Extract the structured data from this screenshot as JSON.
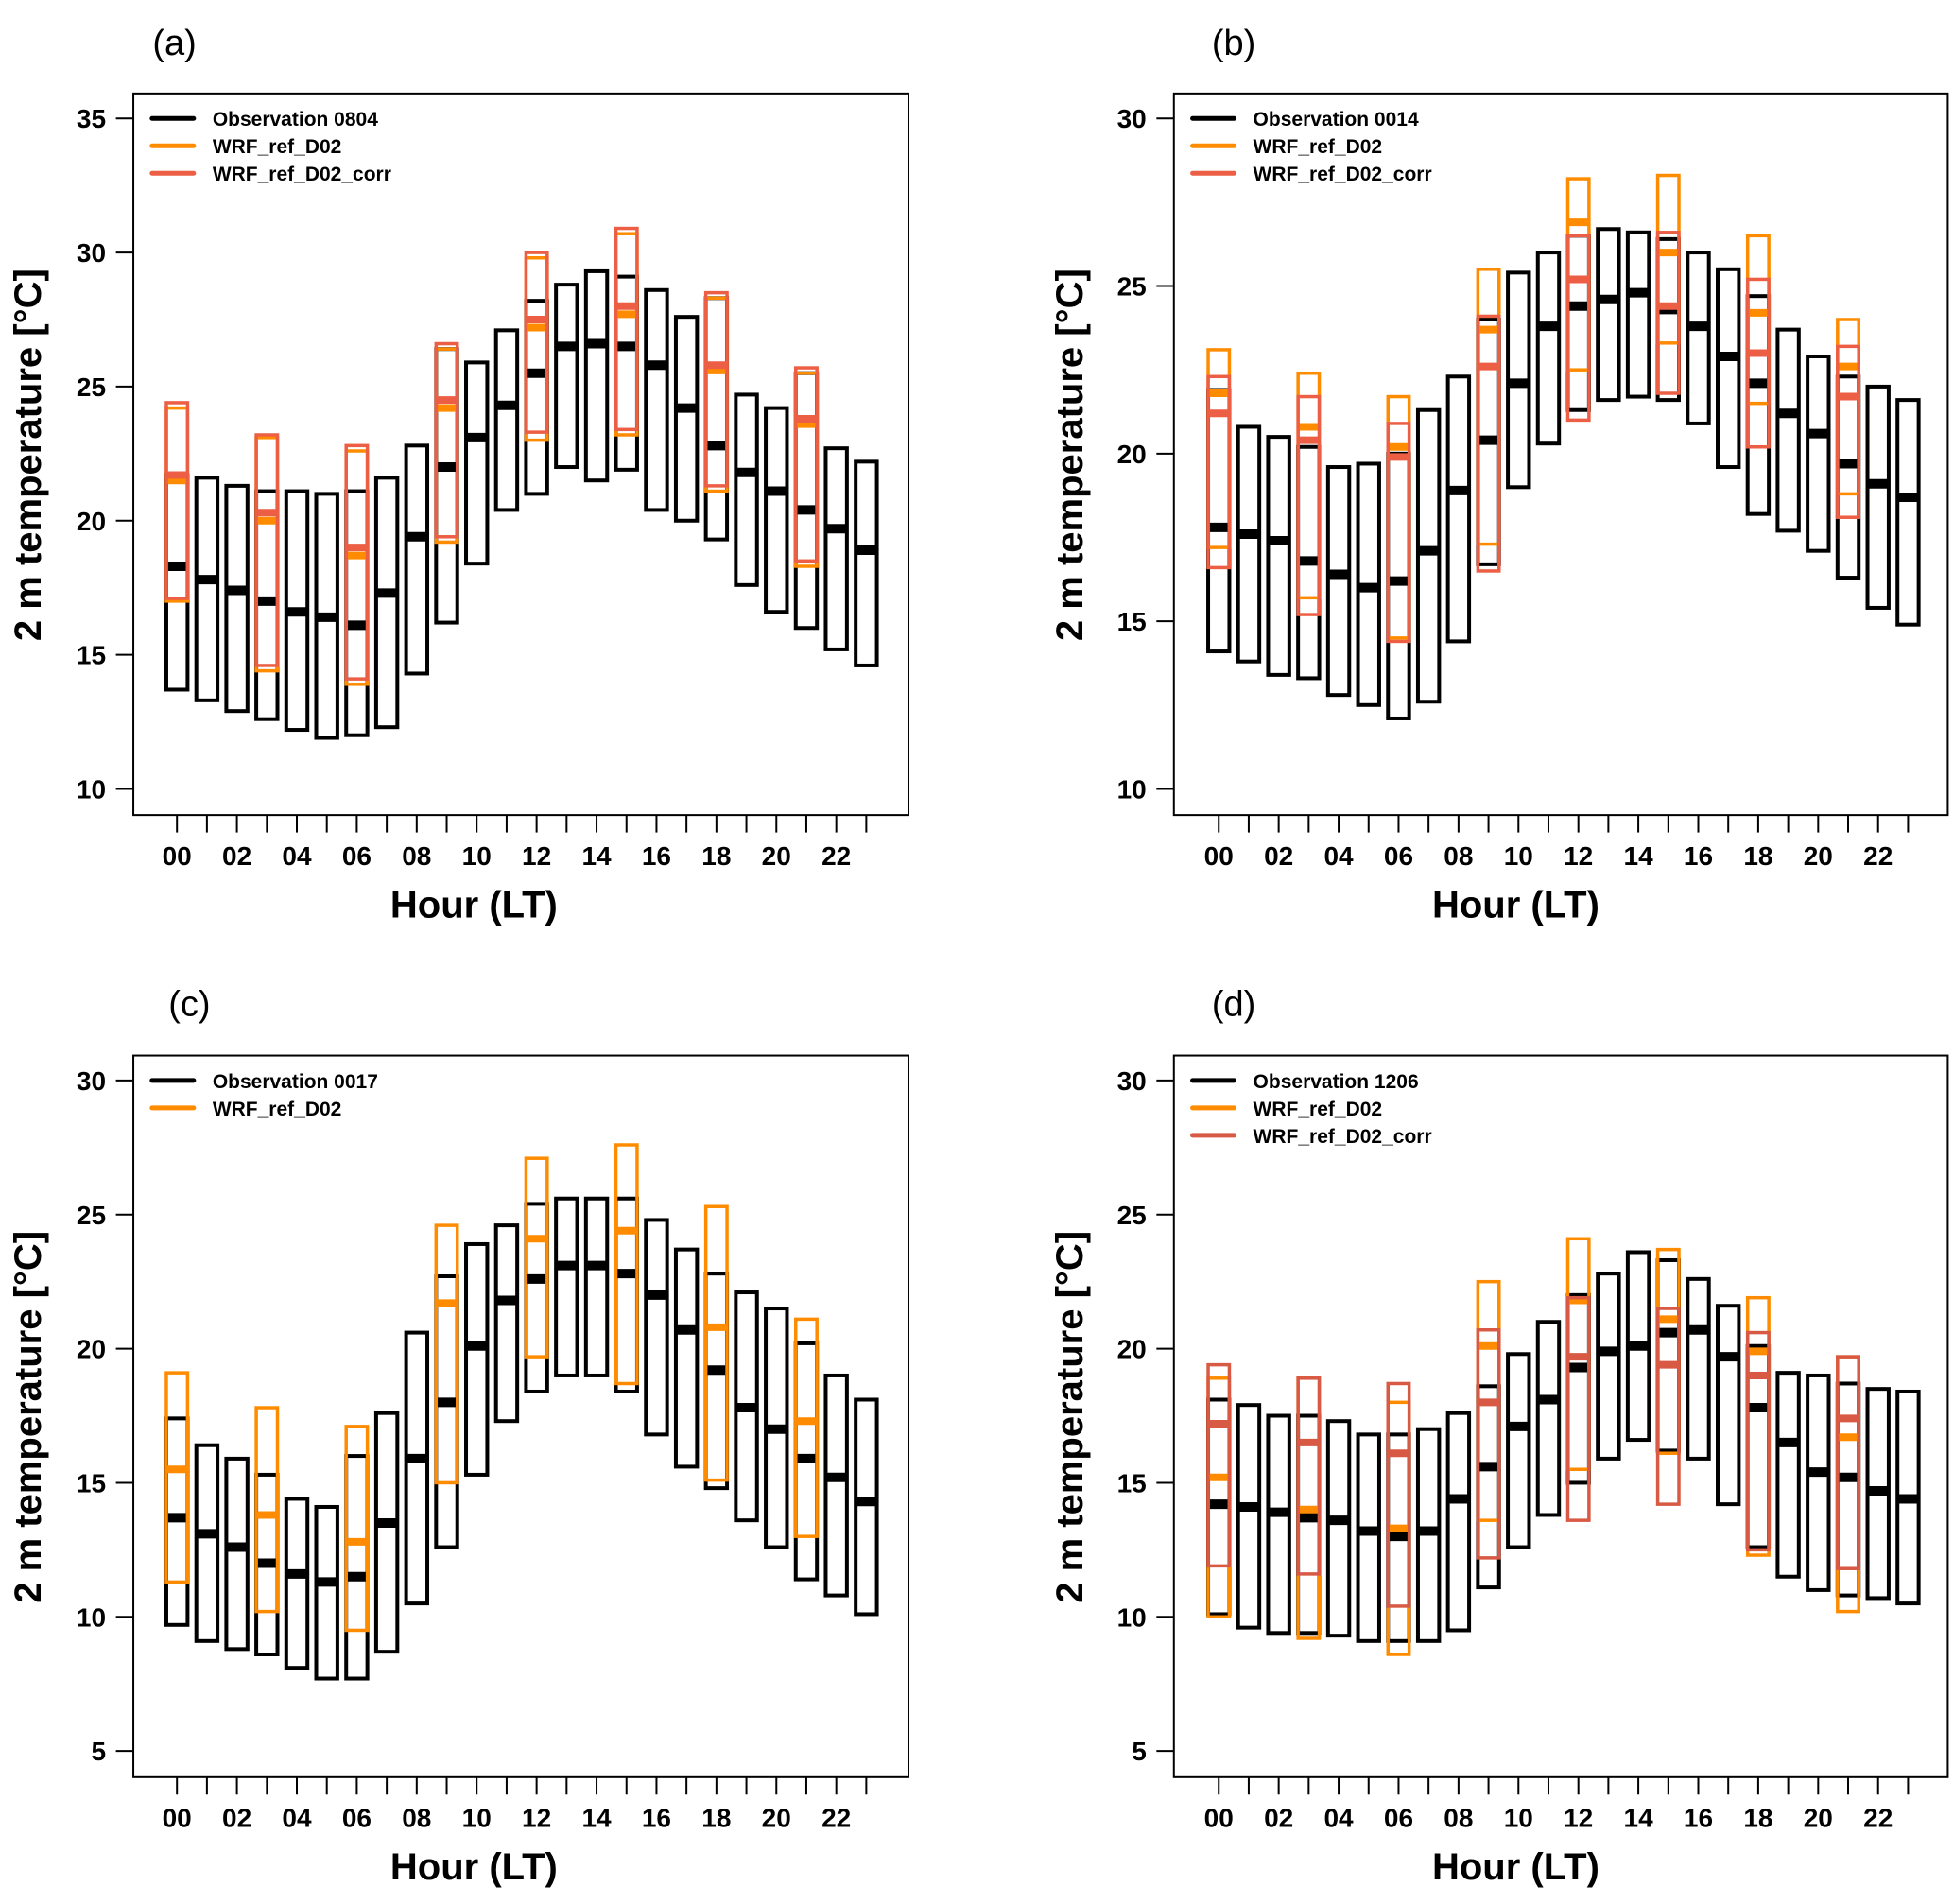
{
  "figure": {
    "colors": {
      "observation": "#000000",
      "wrf": "#ff8c00",
      "corr": "#ec5f45",
      "corr_d": "#d85a45"
    }
  },
  "chart_data": [
    {
      "type": "bar",
      "panel_label": "(a)",
      "xlabel": "Hour (LT)",
      "ylabel": "2 m temperature [°C]",
      "ylim": [
        9,
        36.5
      ],
      "yticks": [
        10,
        15,
        20,
        25,
        30,
        35
      ],
      "xticks": [
        "00",
        "02",
        "04",
        "06",
        "08",
        "10",
        "12",
        "14",
        "16",
        "18",
        "20",
        "22"
      ],
      "legend_position": "top-left",
      "legend": [
        "Observation 0804",
        "WRF_ref_D02",
        "WRF_ref_D02_corr"
      ],
      "series": [
        {
          "name": "Observation 0804",
          "color_key": "observation",
          "hours": [
            0,
            1,
            2,
            3,
            4,
            5,
            6,
            7,
            8,
            9,
            10,
            11,
            12,
            13,
            14,
            15,
            16,
            17,
            18,
            19,
            20,
            21,
            22,
            23
          ],
          "min": [
            13.7,
            13.3,
            12.9,
            12.6,
            12.2,
            11.9,
            12.0,
            12.3,
            14.3,
            16.2,
            18.4,
            20.4,
            21.0,
            22.0,
            21.5,
            21.9,
            20.4,
            20.0,
            19.3,
            17.6,
            16.6,
            16.0,
            15.2,
            14.6
          ],
          "mean": [
            18.3,
            17.8,
            17.4,
            17.0,
            16.6,
            16.4,
            16.1,
            17.3,
            19.4,
            22.0,
            23.1,
            24.3,
            25.5,
            26.5,
            26.6,
            26.5,
            25.8,
            24.2,
            22.8,
            21.8,
            21.1,
            20.4,
            19.7,
            18.9
          ],
          "max": [
            21.7,
            21.6,
            21.3,
            21.1,
            21.1,
            21.0,
            21.1,
            21.6,
            22.8,
            26.4,
            25.9,
            27.1,
            28.2,
            28.8,
            29.3,
            29.1,
            28.6,
            27.6,
            28.3,
            24.7,
            24.2,
            25.5,
            22.7,
            22.2
          ]
        },
        {
          "name": "WRF_ref_D02",
          "color_key": "wrf",
          "hours": [
            0,
            3,
            6,
            9,
            12,
            15,
            18,
            21
          ],
          "min": [
            17.0,
            14.4,
            13.9,
            19.2,
            23.0,
            23.2,
            21.1,
            18.3
          ],
          "mean": [
            21.5,
            20.0,
            18.7,
            24.2,
            27.2,
            27.7,
            25.6,
            23.6
          ],
          "max": [
            24.2,
            23.1,
            22.6,
            26.4,
            29.8,
            30.7,
            28.3,
            25.5
          ]
        },
        {
          "name": "WRF_ref_D02_corr",
          "color_key": "corr",
          "hours": [
            0,
            3,
            6,
            9,
            12,
            15,
            18,
            21
          ],
          "min": [
            17.1,
            14.6,
            14.1,
            19.4,
            23.3,
            23.4,
            21.3,
            18.5
          ],
          "mean": [
            21.7,
            20.3,
            19.0,
            24.5,
            27.5,
            28.0,
            25.8,
            23.8
          ],
          "max": [
            24.4,
            23.2,
            22.8,
            26.6,
            30.0,
            30.9,
            28.5,
            25.7
          ]
        }
      ]
    },
    {
      "type": "bar",
      "panel_label": "(b)",
      "xlabel": "Hour (LT)",
      "ylabel": "2 m temperature [°C]",
      "ylim": [
        9.2,
        30.8
      ],
      "yticks": [
        10,
        15,
        20,
        25,
        30
      ],
      "xticks": [
        "00",
        "02",
        "04",
        "06",
        "08",
        "10",
        "12",
        "14",
        "16",
        "18",
        "20",
        "22"
      ],
      "legend_position": "top-left",
      "legend": [
        "Observation 0014",
        "WRF_ref_D02",
        "WRF_ref_D02_corr"
      ],
      "series": [
        {
          "name": "Observation 0014",
          "color_key": "observation",
          "hours": [
            0,
            1,
            2,
            3,
            4,
            5,
            6,
            7,
            8,
            9,
            10,
            11,
            12,
            13,
            14,
            15,
            16,
            17,
            18,
            19,
            20,
            21,
            22,
            23
          ],
          "min": [
            14.1,
            13.8,
            13.4,
            13.3,
            12.8,
            12.5,
            12.1,
            12.6,
            14.4,
            16.7,
            19.0,
            20.3,
            21.3,
            21.6,
            21.7,
            21.6,
            20.9,
            19.6,
            18.2,
            17.7,
            17.1,
            16.3,
            15.4,
            14.9
          ],
          "mean": [
            17.8,
            17.6,
            17.4,
            16.8,
            16.4,
            16.0,
            16.2,
            17.1,
            18.9,
            20.4,
            22.1,
            23.8,
            24.4,
            24.6,
            24.8,
            24.3,
            23.8,
            22.9,
            22.1,
            21.2,
            20.6,
            19.7,
            19.1,
            18.7
          ],
          "max": [
            21.9,
            20.8,
            20.5,
            20.2,
            19.6,
            19.7,
            20.0,
            21.3,
            22.3,
            24.0,
            25.4,
            26.0,
            26.5,
            26.7,
            26.6,
            26.4,
            26.0,
            25.5,
            24.7,
            23.7,
            22.9,
            22.3,
            22.0,
            21.6
          ]
        },
        {
          "name": "WRF_ref_D02",
          "color_key": "wrf",
          "hours": [
            0,
            3,
            6,
            9,
            12,
            15,
            18,
            21
          ],
          "min": [
            17.2,
            15.7,
            14.5,
            17.3,
            22.5,
            23.3,
            21.5,
            18.8
          ],
          "mean": [
            21.8,
            20.8,
            20.2,
            23.7,
            26.9,
            26.0,
            24.2,
            22.6
          ],
          "max": [
            23.1,
            22.4,
            21.7,
            25.5,
            28.2,
            28.3,
            26.5,
            24.0
          ]
        },
        {
          "name": "WRF_ref_D02_corr",
          "color_key": "corr",
          "hours": [
            0,
            3,
            6,
            9,
            12,
            15,
            18,
            21
          ],
          "min": [
            16.6,
            15.2,
            14.4,
            16.5,
            21.0,
            21.8,
            20.2,
            18.1
          ],
          "mean": [
            21.2,
            20.4,
            19.9,
            22.6,
            25.2,
            24.4,
            23.0,
            21.7
          ],
          "max": [
            22.3,
            21.7,
            20.9,
            24.1,
            26.5,
            26.6,
            25.2,
            23.2
          ]
        }
      ]
    },
    {
      "type": "bar",
      "panel_label": "(c)",
      "xlabel": "Hour (LT)",
      "ylabel": "2 m temperature [°C]",
      "ylim": [
        4,
        31
      ],
      "yticks": [
        5,
        10,
        15,
        20,
        25,
        30
      ],
      "xticks": [
        "00",
        "02",
        "04",
        "06",
        "08",
        "10",
        "12",
        "14",
        "16",
        "18",
        "20",
        "22"
      ],
      "legend_position": "top-left",
      "legend": [
        "Observation 0017",
        "WRF_ref_D02"
      ],
      "series": [
        {
          "name": "Observation 0017",
          "color_key": "observation",
          "hours": [
            0,
            1,
            2,
            3,
            4,
            5,
            6,
            7,
            8,
            9,
            10,
            11,
            12,
            13,
            14,
            15,
            16,
            17,
            18,
            19,
            20,
            21,
            22,
            23
          ],
          "min": [
            9.7,
            9.1,
            8.8,
            8.6,
            8.1,
            7.7,
            7.7,
            8.7,
            10.5,
            12.6,
            15.3,
            17.3,
            18.4,
            19.0,
            19.0,
            18.4,
            16.8,
            15.6,
            14.8,
            13.6,
            12.6,
            11.4,
            10.8,
            10.1
          ],
          "mean": [
            13.7,
            13.1,
            12.6,
            12.0,
            11.6,
            11.3,
            11.5,
            13.5,
            15.9,
            18.0,
            20.1,
            21.8,
            22.6,
            23.1,
            23.1,
            22.8,
            22.0,
            20.7,
            19.2,
            17.8,
            17.0,
            15.9,
            15.2,
            14.3
          ],
          "max": [
            17.4,
            16.4,
            15.9,
            15.3,
            14.4,
            14.1,
            16.0,
            17.6,
            20.6,
            22.7,
            23.9,
            24.6,
            25.4,
            25.6,
            25.6,
            25.6,
            24.8,
            23.7,
            22.8,
            22.1,
            21.5,
            20.2,
            19.0,
            18.1
          ]
        },
        {
          "name": "WRF_ref_D02",
          "color_key": "wrf",
          "hours": [
            0,
            3,
            6,
            9,
            12,
            15,
            18,
            21
          ],
          "min": [
            11.3,
            10.2,
            9.5,
            15.0,
            19.7,
            18.7,
            15.1,
            13.0
          ],
          "mean": [
            15.5,
            13.8,
            12.8,
            21.7,
            24.1,
            24.4,
            20.8,
            17.3
          ],
          "max": [
            19.1,
            17.8,
            17.1,
            24.6,
            27.1,
            27.6,
            25.3,
            21.1
          ]
        }
      ]
    },
    {
      "type": "bar",
      "panel_label": "(d)",
      "xlabel": "Hour (LT)",
      "ylabel": "2 m temperature [°C]",
      "ylim": [
        4,
        31
      ],
      "yticks": [
        5,
        10,
        15,
        20,
        25,
        30
      ],
      "xticks": [
        "00",
        "02",
        "04",
        "06",
        "08",
        "10",
        "12",
        "14",
        "16",
        "18",
        "20",
        "22"
      ],
      "legend_position": "top-left",
      "legend": [
        "Observation 1206",
        "WRF_ref_D02",
        "WRF_ref_D02_corr"
      ],
      "series": [
        {
          "name": "Observation 1206",
          "color_key": "observation",
          "hours": [
            0,
            1,
            2,
            3,
            4,
            5,
            6,
            7,
            8,
            9,
            10,
            11,
            12,
            13,
            14,
            15,
            16,
            17,
            18,
            19,
            20,
            21,
            22,
            23
          ],
          "min": [
            10.1,
            9.6,
            9.4,
            9.4,
            9.3,
            9.1,
            9.1,
            9.1,
            9.5,
            11.1,
            12.6,
            13.8,
            15.0,
            15.9,
            16.6,
            16.2,
            15.9,
            14.2,
            12.6,
            11.5,
            11.0,
            10.8,
            10.7,
            10.5
          ],
          "mean": [
            14.2,
            14.1,
            13.9,
            13.7,
            13.6,
            13.2,
            13.0,
            13.2,
            14.4,
            15.6,
            17.1,
            18.1,
            19.3,
            19.9,
            20.1,
            20.6,
            20.7,
            19.7,
            17.8,
            16.5,
            15.4,
            15.2,
            14.7,
            14.4
          ],
          "max": [
            18.1,
            17.9,
            17.5,
            17.5,
            17.3,
            16.8,
            16.8,
            17.0,
            17.6,
            18.6,
            19.8,
            21.0,
            22.0,
            22.8,
            23.6,
            23.3,
            22.6,
            21.6,
            20.1,
            19.1,
            19.0,
            18.7,
            18.5,
            18.4
          ]
        },
        {
          "name": "WRF_ref_D02",
          "color_key": "wrf",
          "hours": [
            0,
            3,
            6,
            9,
            12,
            15,
            18,
            21
          ],
          "min": [
            10.0,
            9.2,
            8.6,
            13.6,
            15.5,
            16.1,
            12.3,
            10.2
          ],
          "mean": [
            15.2,
            14.0,
            13.3,
            20.1,
            21.8,
            21.1,
            19.9,
            16.7
          ],
          "max": [
            18.9,
            18.9,
            18.0,
            22.5,
            24.1,
            23.7,
            21.9,
            19.7
          ]
        },
        {
          "name": "WRF_ref_D02_corr",
          "color_key": "corr_d",
          "hours": [
            0,
            3,
            6,
            9,
            12,
            15,
            18,
            21
          ],
          "min": [
            11.9,
            11.6,
            10.4,
            12.2,
            13.6,
            14.2,
            12.5,
            11.8
          ],
          "mean": [
            17.2,
            16.5,
            16.1,
            18.0,
            19.7,
            19.4,
            19.0,
            17.4
          ],
          "max": [
            19.4,
            18.9,
            18.7,
            20.7,
            21.9,
            21.5,
            20.6,
            19.7
          ]
        }
      ]
    }
  ]
}
